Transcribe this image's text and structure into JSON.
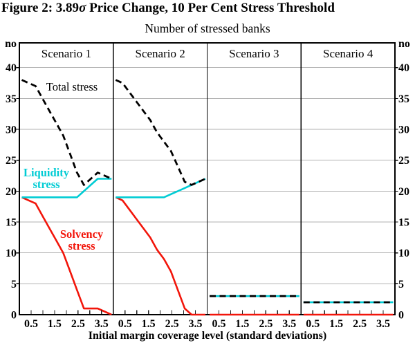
{
  "title": {
    "prefix": "Figure 2: 3.89",
    "sigma": "σ",
    "suffix": " Price Change, 10 Per Cent Stress Threshold"
  },
  "subtitle": "Number of stressed banks",
  "chart_data": {
    "type": "line",
    "title": "Figure 2: 3.89σ Price Change, 10 Per Cent Stress Threshold",
    "subtitle": "Number of stressed banks",
    "xlabel": "Initial margin coverage level (standard deviations)",
    "y_unit_label": "no",
    "ylim": [
      0,
      44
    ],
    "yticks": [
      0,
      5,
      10,
      15,
      20,
      25,
      30,
      35,
      40
    ],
    "grid": "horizontal",
    "x": [
      0.25,
      0.5,
      0.75,
      1.0,
      1.25,
      1.5,
      1.75,
      2.0,
      2.25,
      2.5,
      2.75,
      3.0,
      3.25,
      3.5
    ],
    "x_tick_values": [
      0.5,
      1.0,
      1.5,
      2.0,
      2.5,
      3.0,
      3.5
    ],
    "x_tick_labels": [
      "0.5",
      "1.5",
      "2.5",
      "3.5"
    ],
    "x_tick_label_values": [
      0.5,
      1.5,
      2.5,
      3.5
    ],
    "series_legend": [
      {
        "key": "total",
        "name": "Total stress",
        "color": "#000000",
        "style": "dashed"
      },
      {
        "key": "liquidity",
        "name": "Liquidity stress",
        "color": "#00ccd4",
        "style": "solid"
      },
      {
        "key": "solvency",
        "name": "Solvency stress",
        "color": "#f2150a",
        "style": "solid"
      }
    ],
    "panels": [
      {
        "label": "Scenario 1",
        "total": [
          38,
          37.5,
          37,
          35,
          33,
          31,
          29,
          26,
          23,
          21,
          22,
          23,
          22.5,
          22
        ],
        "liquidity": [
          19,
          19,
          19,
          19,
          19,
          19,
          19,
          19,
          19,
          20,
          21,
          22,
          22,
          22
        ],
        "solvency": [
          19,
          18.5,
          18,
          16,
          14,
          12,
          10,
          7,
          4,
          1,
          1,
          1,
          0.5,
          0
        ]
      },
      {
        "label": "Scenario 2",
        "total": [
          38,
          37.5,
          36,
          34.5,
          33,
          31.5,
          29.5,
          28,
          26.5,
          24,
          21.5,
          21,
          21.5,
          22
        ],
        "liquidity": [
          19,
          19,
          19,
          19,
          19,
          19,
          19,
          19,
          19.5,
          20,
          20.5,
          21,
          21.5,
          22
        ],
        "solvency": [
          19,
          18.5,
          17,
          15.5,
          14,
          12.5,
          10.5,
          9,
          7,
          4,
          1,
          0,
          0,
          0
        ]
      },
      {
        "label": "Scenario 3",
        "total": [
          3,
          3,
          3,
          3,
          3,
          3,
          3,
          3,
          3,
          3,
          3,
          3,
          3,
          3
        ],
        "liquidity": [
          3,
          3,
          3,
          3,
          3,
          3,
          3,
          3,
          3,
          3,
          3,
          3,
          3,
          3
        ],
        "solvency": [
          0,
          0,
          0,
          0,
          0,
          0,
          0,
          0,
          0,
          0,
          0,
          0,
          0,
          0
        ]
      },
      {
        "label": "Scenario 4",
        "total": [
          2,
          2,
          2,
          2,
          2,
          2,
          2,
          2,
          2,
          2,
          2,
          2,
          2,
          2
        ],
        "liquidity": [
          2,
          2,
          2,
          2,
          2,
          2,
          2,
          2,
          2,
          2,
          2,
          2,
          2,
          2
        ],
        "solvency": [
          0,
          0,
          0,
          0,
          0,
          0,
          0,
          0,
          0,
          0,
          0,
          0,
          0,
          0
        ]
      }
    ],
    "annotations": {
      "total": {
        "text": "Total stress",
        "color": "#000000"
      },
      "liquidity": {
        "line1": "Liquidity",
        "line2": "stress",
        "color": "#00ccd4"
      },
      "solvency": {
        "line1": "Solvency",
        "line2": "stress",
        "color": "#f2150a"
      }
    },
    "colors": {
      "grid": "#b0b0b0",
      "frame": "#000000",
      "total": "#000000",
      "liquidity": "#00ccd4",
      "solvency": "#f2150a"
    }
  }
}
